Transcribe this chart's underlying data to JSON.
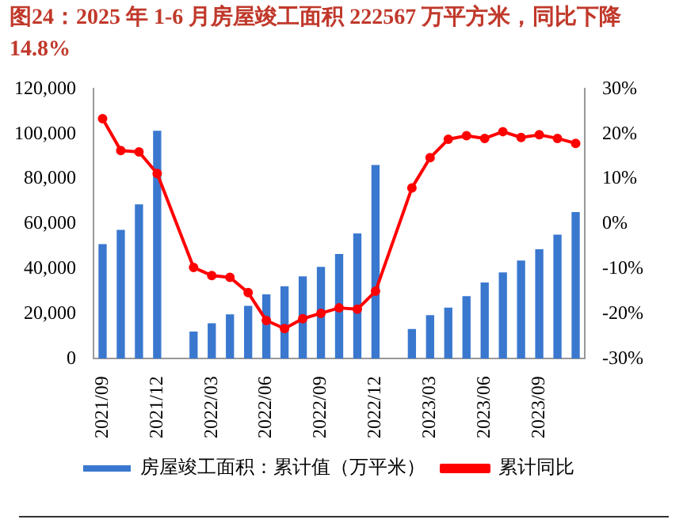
{
  "chart_data": {
    "type": "bar",
    "title": "图24：2025 年 1-6 月房屋竣工面积 222567 万平方米，同比下降 14.8%",
    "categories": [
      "2021/09",
      null,
      null,
      "2021/12",
      null,
      null,
      "2022/03",
      null,
      null,
      "2022/06",
      null,
      null,
      "2022/09",
      null,
      null,
      "2022/12",
      null,
      null,
      "2023/03",
      null,
      null,
      "2023/06",
      null,
      null,
      "2023/09",
      null,
      null
    ],
    "series": [
      {
        "name": "房屋竣工面积：累计值（万平米）",
        "color": "#3a78cf",
        "values": [
          51000,
          57300,
          68700,
          101400,
          null,
          12100,
          15800,
          19700,
          23500,
          28600,
          32200,
          36600,
          40900,
          46600,
          55700,
          86200,
          null,
          13200,
          19400,
          22700,
          27800,
          33900,
          38400,
          43700,
          48700,
          55200,
          65200
        ]
      },
      {
        "name": "累计同比",
        "type": "line",
        "axis": "y2",
        "color": "#ff0000",
        "values": [
          23.4,
          16.3,
          16.0,
          11.2,
          null,
          -9.7,
          -11.5,
          -11.9,
          -15.3,
          -21.5,
          -23.3,
          -21.1,
          -19.9,
          -18.7,
          -19.0,
          -15.0,
          null,
          8.0,
          14.7,
          18.8,
          19.6,
          19.0,
          20.5,
          19.2,
          19.8,
          19.0,
          17.9
        ]
      }
    ],
    "ylim": [
      0,
      120000
    ],
    "yticks": [
      {
        "value": 0,
        "label": "0"
      },
      {
        "value": 20000,
        "label": "20,000"
      },
      {
        "value": 40000,
        "label": "40,000"
      },
      {
        "value": 60000,
        "label": "60,000"
      },
      {
        "value": 80000,
        "label": "80,000"
      },
      {
        "value": 100000,
        "label": "100,000"
      },
      {
        "value": 120000,
        "label": "120,000"
      }
    ],
    "y2lim": [
      -30,
      30
    ],
    "y2ticks": [
      {
        "value": -30,
        "label": "-30%"
      },
      {
        "value": -20,
        "label": "-20%"
      },
      {
        "value": -10,
        "label": "-10%"
      },
      {
        "value": 0,
        "label": "0%"
      },
      {
        "value": 10,
        "label": "10%"
      },
      {
        "value": 20,
        "label": "20%"
      },
      {
        "value": 30,
        "label": "30%"
      }
    ],
    "legend": "bottom",
    "marker": "circle",
    "line_style": "solid"
  }
}
